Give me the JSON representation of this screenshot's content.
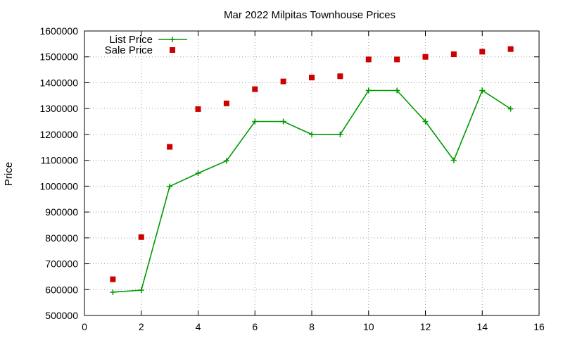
{
  "chart_data": {
    "type": "line",
    "title": "Mar 2022 Milpitas Townhouse Prices",
    "xlabel": "",
    "ylabel": "Price",
    "xlim": [
      0,
      16
    ],
    "ylim": [
      500000,
      1600000
    ],
    "x_ticks": [
      0,
      2,
      4,
      6,
      8,
      10,
      12,
      14,
      16
    ],
    "y_ticks": [
      500000,
      600000,
      700000,
      800000,
      900000,
      1000000,
      1100000,
      1200000,
      1300000,
      1400000,
      1500000,
      1600000
    ],
    "grid": true,
    "legend_position": "top-left",
    "series": [
      {
        "name": "List Price",
        "style": "line-with-plus-markers",
        "color": "#009900",
        "x": [
          1,
          2,
          3,
          4,
          5,
          6,
          7,
          8,
          9,
          10,
          11,
          12,
          13,
          14,
          15
        ],
        "values": [
          590000,
          598000,
          999000,
          1050000,
          1098000,
          1250000,
          1250000,
          1200000,
          1200000,
          1370000,
          1370000,
          1250000,
          1100000,
          1370000,
          1299000
        ]
      },
      {
        "name": "Sale Price",
        "style": "square-markers",
        "color": "#cc0000",
        "x": [
          1,
          2,
          3,
          4,
          5,
          6,
          7,
          8,
          9,
          10,
          11,
          12,
          13,
          14,
          15
        ],
        "values": [
          640000,
          803000,
          1152000,
          1298000,
          1320000,
          1375000,
          1405000,
          1420000,
          1425000,
          1490000,
          1490000,
          1500000,
          1510000,
          1520000,
          1530000
        ]
      }
    ]
  }
}
